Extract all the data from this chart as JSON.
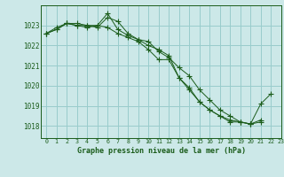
{
  "title": "Graphe pression niveau de la mer (hPa)",
  "background_color": "#cce8e8",
  "grid_color": "#99cccc",
  "line_color": "#1a5c1a",
  "xlim": [
    -0.5,
    23
  ],
  "ylim": [
    1017.4,
    1024.0
  ],
  "yticks": [
    1018,
    1019,
    1020,
    1021,
    1022,
    1023
  ],
  "xticks": [
    0,
    1,
    2,
    3,
    4,
    5,
    6,
    7,
    8,
    9,
    10,
    11,
    12,
    13,
    14,
    15,
    16,
    17,
    18,
    19,
    20,
    21,
    22,
    23
  ],
  "series": [
    [
      1022.6,
      1022.8,
      1023.1,
      1023.0,
      1022.9,
      1023.0,
      1023.6,
      1022.8,
      1022.5,
      1022.3,
      1022.2,
      1021.7,
      1021.4,
      1020.9,
      1020.5,
      1019.8,
      1019.3,
      1018.8,
      1018.5,
      1018.2,
      1018.1,
      1019.1,
      1019.6,
      null
    ],
    [
      1022.6,
      1022.8,
      1023.1,
      1023.0,
      1023.0,
      1023.0,
      1022.9,
      1022.6,
      1022.4,
      1022.2,
      1021.8,
      1021.3,
      1021.3,
      1020.4,
      1019.8,
      1019.2,
      1018.8,
      1018.5,
      1018.2,
      1018.2,
      1018.1,
      1018.2,
      null,
      null
    ],
    [
      1022.6,
      1022.9,
      1023.1,
      1023.1,
      1023.0,
      1022.9,
      1023.4,
      1023.2,
      1022.6,
      1022.3,
      1022.0,
      1021.8,
      1021.5,
      1020.4,
      1019.9,
      1019.2,
      1018.8,
      1018.5,
      1018.3,
      1018.2,
      1018.1,
      1018.3,
      null,
      null
    ]
  ]
}
